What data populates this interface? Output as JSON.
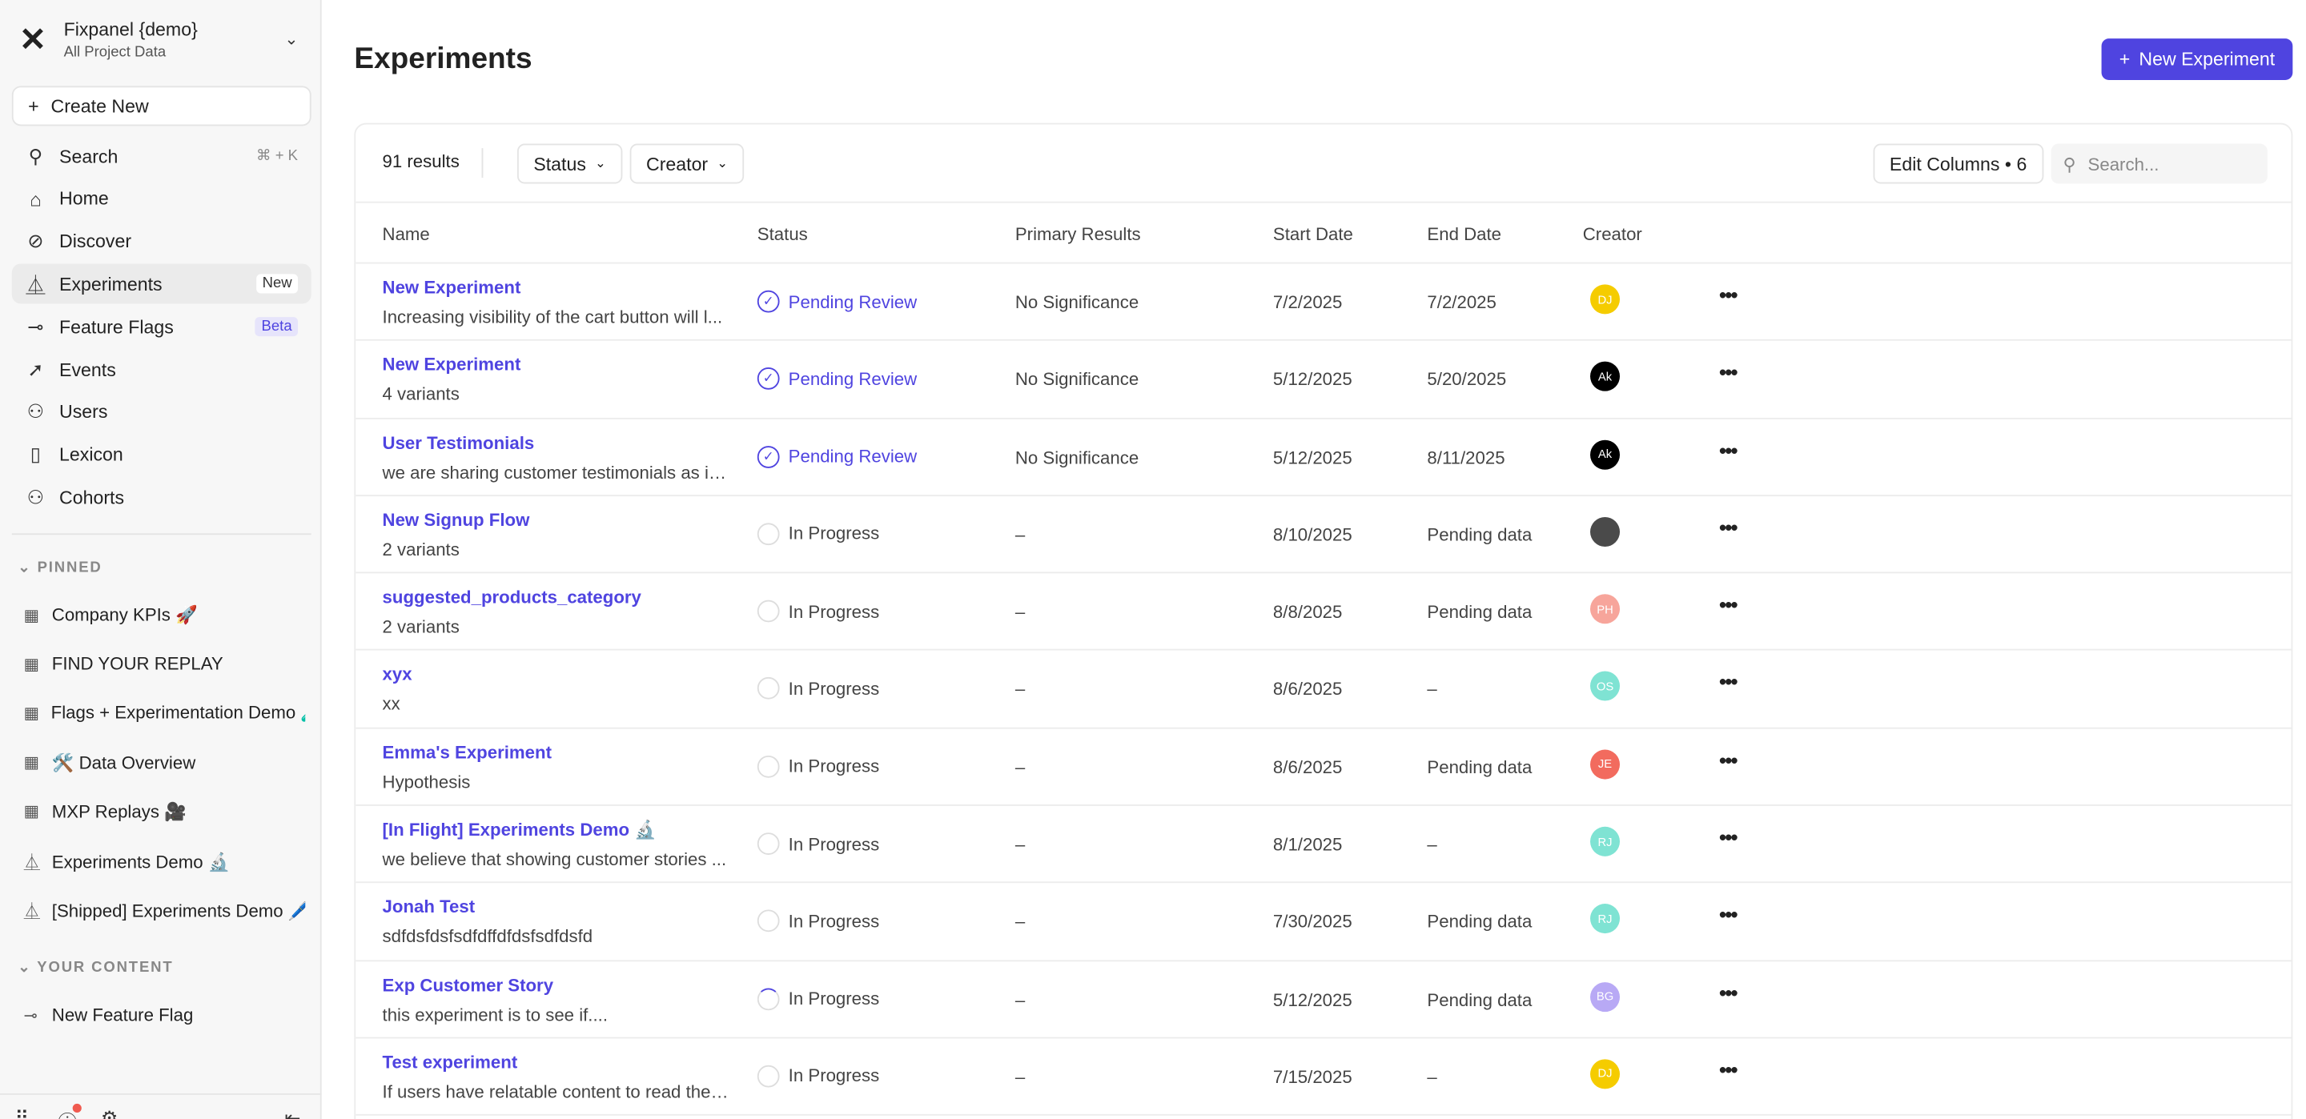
{
  "sidebar": {
    "project_title": "Fixpanel {demo}",
    "project_subtitle": "All Project Data",
    "create_new": "Create New",
    "nav": [
      {
        "label": "Search",
        "icon": "search-icon",
        "shortcut": "⌘ + K"
      },
      {
        "label": "Home",
        "icon": "home-icon"
      },
      {
        "label": "Discover",
        "icon": "compass-icon"
      },
      {
        "label": "Experiments",
        "icon": "flask-icon",
        "badge": "New",
        "active": true
      },
      {
        "label": "Feature Flags",
        "icon": "toggle-icon",
        "badge": "Beta"
      },
      {
        "label": "Events",
        "icon": "cursor-click-icon"
      },
      {
        "label": "Users",
        "icon": "users-icon"
      },
      {
        "label": "Lexicon",
        "icon": "book-icon"
      },
      {
        "label": "Cohorts",
        "icon": "cohorts-icon"
      }
    ],
    "pinned_label": "PINNED",
    "pinned": [
      {
        "label": "Company KPIs 🚀",
        "icon": "board-icon"
      },
      {
        "label": "FIND YOUR REPLAY",
        "icon": "board-icon"
      },
      {
        "label": "Flags + Experimentation Demo 🧪",
        "icon": "board-icon"
      },
      {
        "label": "🛠️ Data Overview",
        "icon": "board-icon"
      },
      {
        "label": "MXP Replays 🎥",
        "icon": "board-icon"
      },
      {
        "label": "Experiments Demo 🔬",
        "icon": "flask-icon"
      },
      {
        "label": "[Shipped] Experiments Demo 🖊️",
        "icon": "flask-icon"
      }
    ],
    "your_content_label": "YOUR CONTENT",
    "your_content": [
      {
        "label": "New Feature Flag",
        "icon": "toggle-icon"
      }
    ]
  },
  "header": {
    "title": "Experiments",
    "new_button": "New Experiment"
  },
  "toolbar": {
    "results": "91 results",
    "status_filter": "Status",
    "creator_filter": "Creator",
    "edit_columns": "Edit Columns • 6",
    "search_placeholder": "Search..."
  },
  "columns": [
    "Name",
    "Status",
    "Primary Results",
    "Start Date",
    "End Date",
    "Creator"
  ],
  "colors": {
    "accent": "#4f44e0"
  },
  "rows": [
    {
      "name": "New Experiment",
      "desc": "Increasing visibility of the cart button will l...",
      "status": "Pending Review",
      "primary": "No Significance",
      "start": "7/2/2025",
      "end": "7/2/2025",
      "creator": "DJ",
      "color": "#f5cc00"
    },
    {
      "name": "New Experiment",
      "desc": "4 variants",
      "status": "Pending Review",
      "primary": "No Significance",
      "start": "5/12/2025",
      "end": "5/20/2025",
      "creator": "Ak",
      "color": "#000000"
    },
    {
      "name": "User Testimonials",
      "desc": "we are sharing customer testimonials as in...",
      "status": "Pending Review",
      "primary": "No Significance",
      "start": "5/12/2025",
      "end": "8/11/2025",
      "creator": "Ak",
      "color": "#000000"
    },
    {
      "name": "New Signup Flow",
      "desc": "2 variants",
      "status": "In Progress",
      "primary": "–",
      "start": "8/10/2025",
      "end": "Pending data",
      "creator": "",
      "color": "#4a4a4a"
    },
    {
      "name": "suggested_products_category",
      "desc": "2 variants",
      "status": "In Progress",
      "primary": "–",
      "start": "8/8/2025",
      "end": "Pending data",
      "creator": "PH",
      "color": "#f7a59b"
    },
    {
      "name": "xyx",
      "desc": "xx",
      "status": "In Progress",
      "primary": "–",
      "start": "8/6/2025",
      "end": "–",
      "creator": "OS",
      "color": "#7fe3d3"
    },
    {
      "name": "Emma's Experiment",
      "desc": "Hypothesis",
      "status": "In Progress",
      "primary": "–",
      "start": "8/6/2025",
      "end": "Pending data",
      "creator": "JE",
      "color": "#f26b5e"
    },
    {
      "name": "[In Flight] Experiments Demo 🔬",
      "desc": "we believe that showing customer stories ...",
      "status": "In Progress",
      "primary": "–",
      "start": "8/1/2025",
      "end": "–",
      "creator": "RJ",
      "color": "#7fe3d3"
    },
    {
      "name": "Jonah Test",
      "desc": "sdfdsfdsfsdfdffdfdsfsdfdsfd",
      "status": "In Progress",
      "primary": "–",
      "start": "7/30/2025",
      "end": "Pending data",
      "creator": "RJ",
      "color": "#7fe3d3"
    },
    {
      "name": "Exp Customer Story",
      "desc": "this experiment is to see if....",
      "status": "In Progress",
      "primary": "–",
      "start": "5/12/2025",
      "end": "Pending data",
      "creator": "BG",
      "color": "#b8a9f5",
      "spinner": true
    },
    {
      "name": "Test experiment",
      "desc": "If users have relatable content to read they...",
      "status": "In Progress",
      "primary": "–",
      "start": "7/15/2025",
      "end": "–",
      "creator": "DJ",
      "color": "#f5cc00"
    }
  ]
}
